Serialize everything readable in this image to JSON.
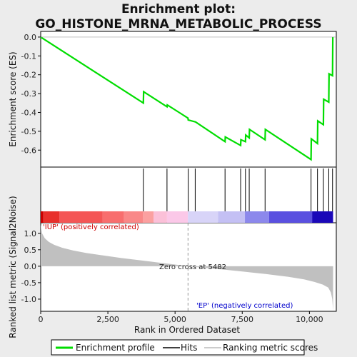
{
  "chart_data": {
    "type": "line",
    "title_line1": "Enrichment plot:",
    "title_line2": "GO_HISTONE_MRNA_METABOLIC_PROCESS",
    "xlabel": "Rank in Ordered Dataset",
    "ylabel_top": "Enrichment score (ES)",
    "ylabel_bottom": "Ranked list metric (Signal2Noise)",
    "x_range": [
      0,
      11000
    ],
    "x_ticks": [
      0,
      2500,
      5000,
      7500,
      10000
    ],
    "x_tick_labels": [
      "0",
      "2,500",
      "5,000",
      "7,500",
      "10,000"
    ],
    "es_range": [
      -0.69,
      0.03
    ],
    "es_ticks": [
      0.0,
      -0.1,
      -0.2,
      -0.3,
      -0.4,
      -0.5,
      -0.6
    ],
    "es_tick_labels": [
      "0.0",
      "-0.1",
      "-0.2",
      "-0.3",
      "-0.4",
      "-0.5",
      "-0.6"
    ],
    "metric_range": [
      -1.37,
      1.32
    ],
    "metric_ticks": [
      1.0,
      0.5,
      0.0,
      -0.5,
      -1.0
    ],
    "metric_tick_labels": [
      "1.0",
      "0.5",
      "0.0",
      "-0.5",
      "-1.0"
    ],
    "enrichment_profile": {
      "x": [
        0,
        3820,
        3830,
        4700,
        4710,
        5480,
        5490,
        5750,
        5760,
        6860,
        6870,
        7440,
        7450,
        7620,
        7630,
        7760,
        7770,
        8350,
        8360,
        10060,
        10070,
        10300,
        10310,
        10520,
        10530,
        10720,
        10730,
        10860,
        10870
      ],
      "y": [
        0.0,
        -0.35,
        -0.29,
        -0.37,
        -0.36,
        -0.43,
        -0.44,
        -0.45,
        -0.45,
        -0.555,
        -0.53,
        -0.575,
        -0.545,
        -0.555,
        -0.52,
        -0.535,
        -0.49,
        -0.545,
        -0.49,
        -0.65,
        -0.54,
        -0.565,
        -0.445,
        -0.465,
        -0.33,
        -0.345,
        -0.195,
        -0.205,
        0.0
      ]
    },
    "hits": [
      3820,
      4700,
      5490,
      5750,
      6860,
      7440,
      7620,
      7760,
      8350,
      10060,
      10300,
      10520,
      10720,
      10860
    ],
    "metric_curve": {
      "x": [
        0,
        50,
        150,
        300,
        500,
        800,
        1200,
        1700,
        2300,
        3000,
        3800,
        4500,
        5000,
        5482,
        6000,
        6800,
        7600,
        8400,
        9200,
        9800,
        10200,
        10500,
        10700,
        10800,
        10850,
        10880
      ],
      "y": [
        1.27,
        1.0,
        0.85,
        0.74,
        0.65,
        0.56,
        0.48,
        0.4,
        0.33,
        0.25,
        0.17,
        0.1,
        0.05,
        0.0,
        -0.04,
        -0.1,
        -0.17,
        -0.24,
        -0.32,
        -0.4,
        -0.48,
        -0.56,
        -0.65,
        -0.8,
        -1.0,
        -1.35
      ]
    },
    "zero_cross": 5482,
    "zero_cross_label": "Zero cross at 5482",
    "pos_label": "'IUP' (positively correlated)",
    "neg_label": "'EP' (negatively correlated)",
    "heatmap_segments": [
      {
        "x0": 0,
        "x1": 100,
        "color": "#cc0000"
      },
      {
        "x0": 100,
        "x1": 700,
        "color": "#e8302c"
      },
      {
        "x0": 700,
        "x1": 2300,
        "color": "#f45656"
      },
      {
        "x0": 2300,
        "x1": 3100,
        "color": "#f86e6e"
      },
      {
        "x0": 3100,
        "x1": 3800,
        "color": "#f98888"
      },
      {
        "x0": 3800,
        "x1": 4200,
        "color": "#fba0a0"
      },
      {
        "x0": 4200,
        "x1": 4700,
        "color": "#fbc0d8"
      },
      {
        "x0": 4700,
        "x1": 5480,
        "color": "#fbc8e8"
      },
      {
        "x0": 5480,
        "x1": 6600,
        "color": "#d8d4f8"
      },
      {
        "x0": 6600,
        "x1": 7600,
        "color": "#c4c0f4"
      },
      {
        "x0": 7600,
        "x1": 8500,
        "color": "#8c88ec"
      },
      {
        "x0": 8500,
        "x1": 10100,
        "color": "#5a50e0"
      },
      {
        "x0": 10100,
        "x1": 10880,
        "color": "#1a08b8"
      }
    ],
    "colors": {
      "profile": "#00dd00",
      "hit": "#000000",
      "metric_fill": "#c0c0c0",
      "pos_text": "#cc0000",
      "neg_text": "#0000cc"
    },
    "legend": [
      "Enrichment profile",
      "Hits",
      "Ranking metric scores"
    ]
  }
}
